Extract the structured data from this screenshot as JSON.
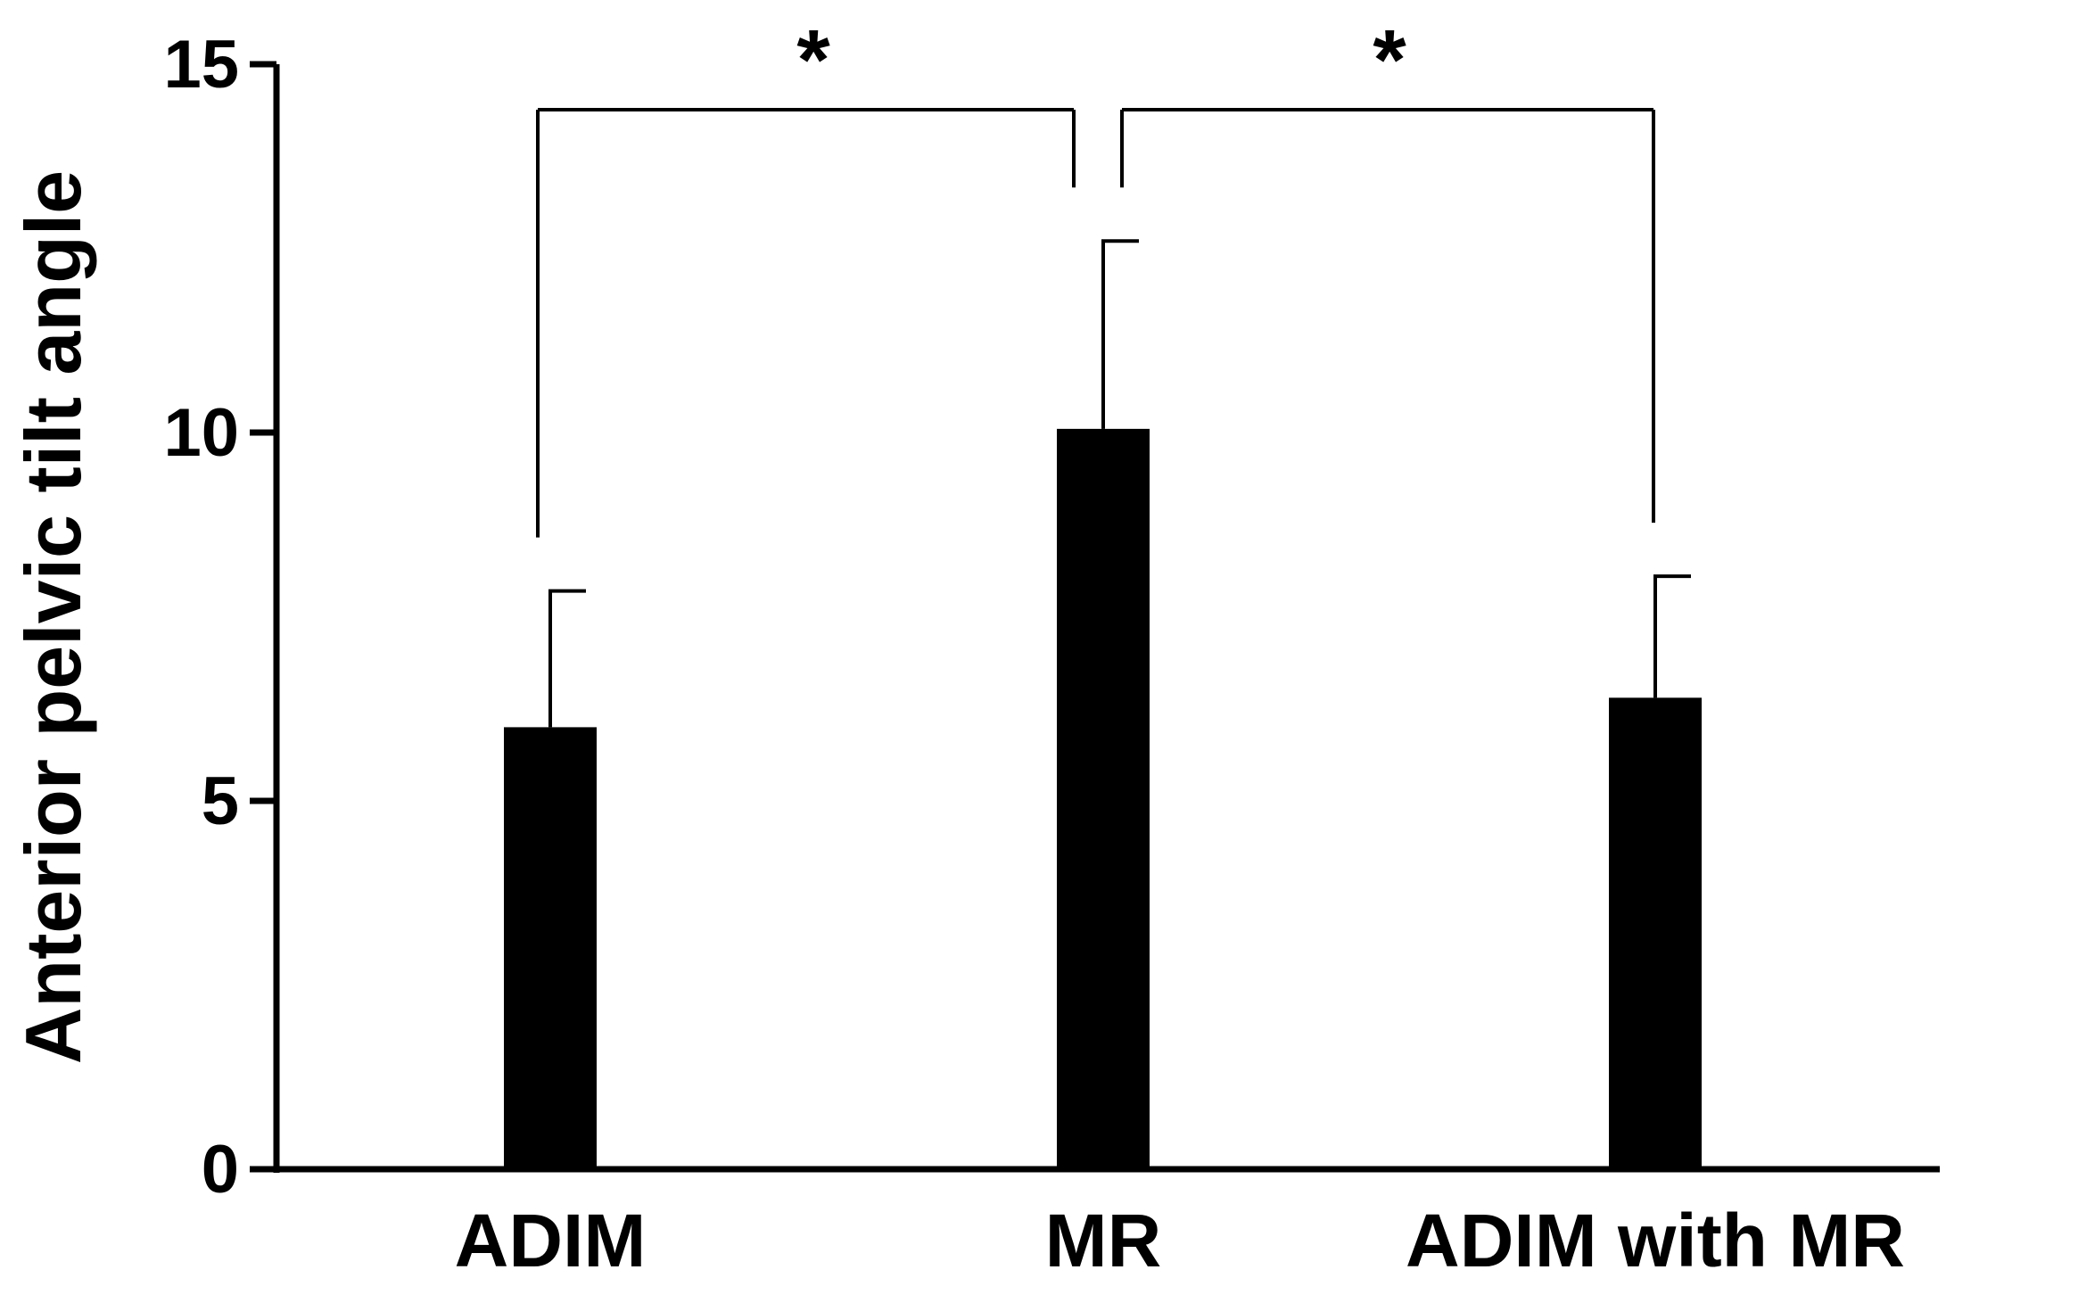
{
  "chart_data": {
    "type": "bar",
    "title": "",
    "xlabel": "",
    "ylabel": "Anterior pelvic tilt angle",
    "categories": [
      "ADIM",
      "MR",
      "ADIM with MR"
    ],
    "values": [
      6.0,
      10.05,
      6.4
    ],
    "error_upper": [
      7.85,
      12.6,
      8.05
    ],
    "ylim": [
      0,
      15
    ],
    "yticks": [
      0,
      5,
      10,
      15
    ],
    "ytick_labels": [
      "0",
      "5",
      "10",
      "15"
    ],
    "significance": [
      {
        "from": "ADIM",
        "to": "MR",
        "label": "*"
      },
      {
        "from": "MR",
        "to": "ADIM with MR",
        "label": "*"
      }
    ],
    "bar_color": "#000000",
    "grid": false,
    "legend": "none"
  }
}
